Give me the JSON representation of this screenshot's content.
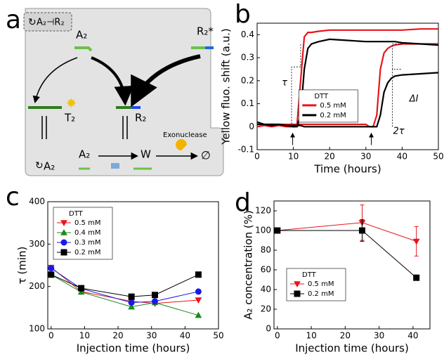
{
  "panels": [
    "a",
    "b",
    "c",
    "d"
  ],
  "diagram": {
    "labels": [
      "A₂⊣R₂",
      "A₂",
      "R₂*",
      "T₂",
      "R₂",
      "A₂",
      "A₂",
      "W",
      "Exonuclease",
      "∅"
    ]
  },
  "chart_data": [
    {
      "type": "line",
      "xlabel": "Time (hours)",
      "ylabel": "Yellow fluo. shift (a.u.)",
      "xlim": [
        0,
        50
      ],
      "ylim": [
        -0.1,
        0.45
      ],
      "xticks": [
        0,
        10,
        20,
        30,
        40,
        50
      ],
      "yticks": [
        -0.1,
        0,
        0.1,
        0.2,
        0.3,
        0.4
      ],
      "legend": "center",
      "legend_title": "DTT",
      "annotations": [
        "τ",
        "ΔI",
        "2τ"
      ],
      "x": [
        0,
        2,
        4,
        6,
        8,
        10,
        11,
        12,
        13,
        14,
        15,
        17,
        20,
        25,
        30,
        31,
        32,
        33,
        34,
        35,
        36,
        37,
        38,
        40,
        45,
        50
      ],
      "series": [
        {
          "name": "0.5 mM",
          "color": "#e8141c",
          "curves": [
            {
              "values": [
                0,
                0.005,
                0,
                0.005,
                0,
                0,
                0.01,
                0.2,
                0.39,
                0.41,
                0.41,
                0.415,
                0.42,
                0.42,
                0.42,
                0.42,
                0.42,
                0.42,
                0.42,
                0.42,
                0.42,
                0.42,
                0.42,
                0.42,
                0.425,
                0.425
              ]
            },
            {
              "values": [
                0.01,
                0.01,
                0.01,
                0.01,
                0.01,
                0.01,
                0.01,
                0.01,
                0.01,
                0.01,
                0.01,
                0.01,
                0.01,
                0.01,
                0.01,
                0,
                0,
                0.05,
                0.25,
                0.32,
                0.34,
                0.35,
                0.355,
                0.36,
                0.36,
                0.36
              ]
            }
          ]
        },
        {
          "name": "0.2 mM",
          "color": "#000000",
          "curves": [
            {
              "values": [
                0.01,
                0.01,
                0.005,
                0.01,
                0.005,
                0,
                0,
                0.05,
                0.25,
                0.34,
                0.36,
                0.37,
                0.38,
                0.375,
                0.37,
                0.37,
                0.37,
                0.37,
                0.37,
                0.37,
                0.37,
                0.37,
                0.37,
                0.365,
                0.36,
                0.355
              ]
            },
            {
              "values": [
                0.02,
                0.01,
                0.01,
                0.01,
                0.005,
                0.005,
                0.005,
                0.005,
                0,
                0,
                0,
                0,
                0,
                0,
                0,
                0,
                0,
                0,
                0.05,
                0.15,
                0.19,
                0.21,
                0.22,
                0.225,
                0.23,
                0.235
              ]
            }
          ]
        }
      ]
    },
    {
      "type": "line",
      "xlabel": "Injection time (hours)",
      "ylabel": "τ (min)",
      "xlim": [
        -1,
        50
      ],
      "ylim": [
        100,
        400
      ],
      "xticks": [
        0,
        10,
        20,
        30,
        40,
        50
      ],
      "yticks": [
        100,
        200,
        300,
        400
      ],
      "legend": "upper left",
      "legend_title": "DTT",
      "x": [
        0,
        9,
        24,
        31,
        44
      ],
      "series": [
        {
          "name": "0.5 mM",
          "color": "#e8141c",
          "marker": "triangle-down",
          "values": [
            245,
            188,
            165,
            160,
            168
          ]
        },
        {
          "name": "0.4 mM",
          "color": "#1a8a1a",
          "marker": "triangle-up",
          "values": [
            228,
            187,
            152,
            162,
            132
          ]
        },
        {
          "name": "0.3 mM",
          "color": "#1a1ae6",
          "marker": "circle",
          "values": [
            243,
            195,
            162,
            165,
            188
          ]
        },
        {
          "name": "0.2 mM",
          "color": "#000000",
          "marker": "square",
          "values": [
            228,
            196,
            176,
            180,
            228
          ]
        }
      ]
    },
    {
      "type": "line",
      "xlabel": "Injection time (hours)",
      "ylabel": "A₂ concentration (%)",
      "xlim": [
        -1,
        45
      ],
      "ylim": [
        0,
        130
      ],
      "xticks": [
        0,
        10,
        20,
        30,
        40
      ],
      "yticks": [
        0,
        20,
        40,
        60,
        80,
        100,
        120
      ],
      "legend": "lower left",
      "legend_title": "DTT",
      "x": [
        0,
        25,
        41
      ],
      "series": [
        {
          "name": "0.5 mM",
          "color": "#e8141c",
          "marker": "triangle-down",
          "values": [
            100,
            108,
            89
          ],
          "errors": [
            0,
            18,
            15
          ]
        },
        {
          "name": "0.2 mM",
          "color": "#000000",
          "marker": "square",
          "values": [
            100,
            100,
            52
          ],
          "errors": [
            0,
            11,
            0
          ]
        }
      ]
    }
  ]
}
